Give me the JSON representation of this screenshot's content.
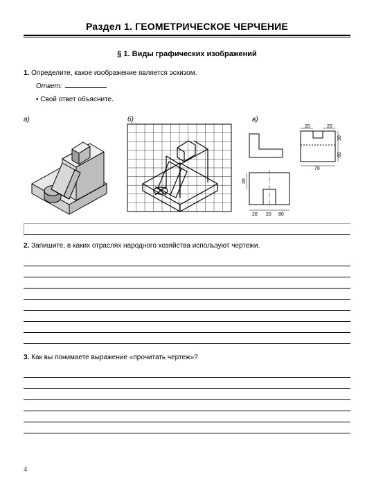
{
  "page_number": "4",
  "section_title": "Раздел 1. ГЕОМЕТРИЧЕСКОЕ ЧЕРЧЕНИЕ",
  "subsection_title": "§ 1. Виды графических изображений",
  "q1_num": "1.",
  "q1_text": " Определите, какое изображение является эскизом.",
  "answer_label": "Ответ: ",
  "explain_bullet": "• Свой ответ объясните.",
  "fig": {
    "labels": {
      "a": "а)",
      "b": "б)",
      "c": "в)"
    },
    "a": {
      "stroke": "#000",
      "fill": "#fff",
      "shade": "#d8d8d8",
      "shade2": "#bdbdbd",
      "stroke_w": 1
    },
    "b": {
      "stroke": "#000",
      "grid": "#000",
      "grid_w": 0.5,
      "stroke_w": 1,
      "grid_cols": 12,
      "grid_rows": 10
    },
    "c": {
      "stroke": "#000",
      "thin": "#000",
      "stroke_w": 1,
      "thin_w": 0.5,
      "dims": {
        "d20a": "20",
        "d20b": "20",
        "d30": "30",
        "d60": "60",
        "d70": "70",
        "d20l": "20",
        "d20l2": "20",
        "d80": "80"
      }
    }
  },
  "q2_num": "2.",
  "q2_text": " Запишите, в каких отраслях народного хозяйства используют чертежи.",
  "q2_lines": 8,
  "q3_num": "3.",
  "q3_text": " Как вы понимаете выражение «прочитать чертеж»?",
  "q3_lines": 6,
  "line_color": "#000"
}
